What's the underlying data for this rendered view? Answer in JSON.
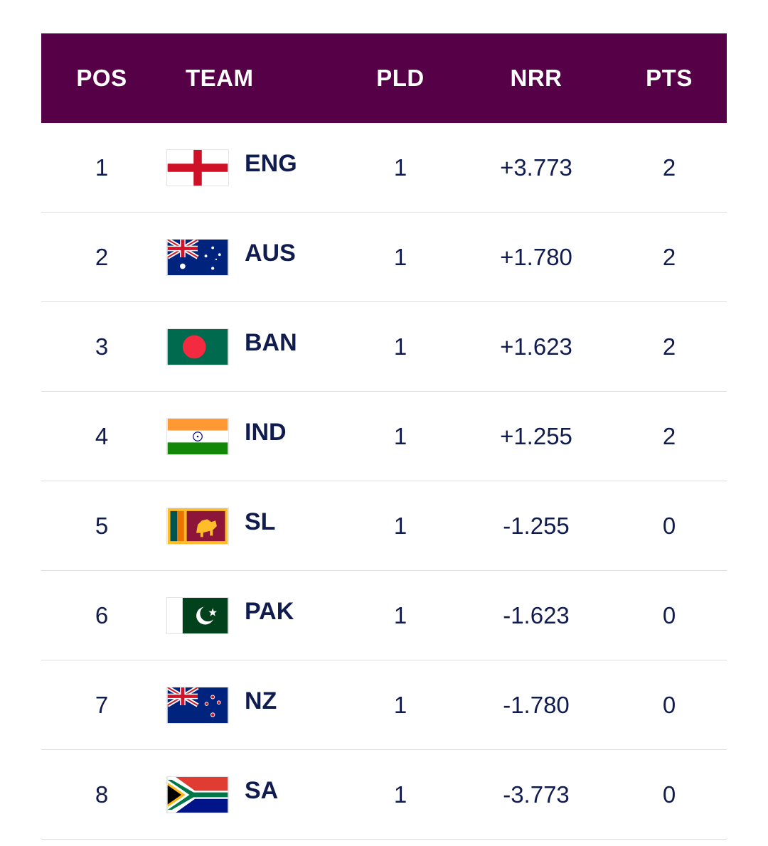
{
  "table": {
    "columns": {
      "pos": "POS",
      "team": "TEAM",
      "pld": "PLD",
      "nrr": "NRR",
      "pts": "PTS"
    },
    "header_bg": "#560048",
    "rows": [
      {
        "pos": "1",
        "team": "ENG",
        "flag": "england-flag-icon",
        "pld": "1",
        "nrr": "+3.773",
        "pts": "2"
      },
      {
        "pos": "2",
        "team": "AUS",
        "flag": "australia-flag-icon",
        "pld": "1",
        "nrr": "+1.780",
        "pts": "2"
      },
      {
        "pos": "3",
        "team": "BAN",
        "flag": "bangladesh-flag-icon",
        "pld": "1",
        "nrr": "+1.623",
        "pts": "2"
      },
      {
        "pos": "4",
        "team": "IND",
        "flag": "india-flag-icon",
        "pld": "1",
        "nrr": "+1.255",
        "pts": "2"
      },
      {
        "pos": "5",
        "team": "SL",
        "flag": "sri-lanka-flag-icon",
        "pld": "1",
        "nrr": "-1.255",
        "pts": "0"
      },
      {
        "pos": "6",
        "team": "PAK",
        "flag": "pakistan-flag-icon",
        "pld": "1",
        "nrr": "-1.623",
        "pts": "0"
      },
      {
        "pos": "7",
        "team": "NZ",
        "flag": "new-zealand-flag-icon",
        "pld": "1",
        "nrr": "-1.780",
        "pts": "0"
      },
      {
        "pos": "8",
        "team": "SA",
        "flag": "south-africa-flag-icon",
        "pld": "1",
        "nrr": "-3.773",
        "pts": "0"
      }
    ]
  }
}
